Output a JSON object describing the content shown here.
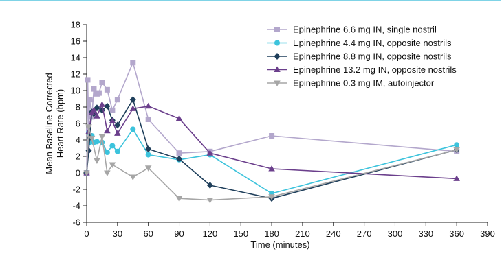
{
  "chart_data": {
    "type": "line",
    "title": "",
    "xlabel": "Time (minutes)",
    "ylabel_lines": [
      "Mean Baseline-Corrected",
      "Heart Rate (bpm)"
    ],
    "xlim": [
      0,
      390
    ],
    "ylim": [
      -6,
      18
    ],
    "xticks": [
      0,
      30,
      60,
      90,
      120,
      150,
      180,
      210,
      240,
      270,
      300,
      330,
      360,
      390
    ],
    "yticks": [
      -6,
      -4,
      -2,
      0,
      2,
      4,
      6,
      8,
      10,
      12,
      14,
      16,
      18
    ],
    "grid": false,
    "legend_position": "top-right",
    "series": [
      {
        "name": "Epinephrine 6.6 mg IN, single nostril",
        "color": "#b3a7cc",
        "marker": "square",
        "x": [
          0,
          1,
          2,
          3,
          5,
          7,
          10,
          12,
          15,
          20,
          25,
          30,
          45,
          60,
          90,
          120,
          180,
          360
        ],
        "y": [
          0,
          11.3,
          5.2,
          8.9,
          6.8,
          10.2,
          9.6,
          9.7,
          11.0,
          10.1,
          7.6,
          8.9,
          13.4,
          6.5,
          2.4,
          2.6,
          4.5,
          2.6
        ]
      },
      {
        "name": "Epinephrine 4.4 mg IN, opposite nostrils",
        "color": "#3cc3dc",
        "marker": "circle",
        "x": [
          0,
          2,
          3,
          5,
          7,
          10,
          15,
          20,
          25,
          30,
          45,
          60,
          90,
          120,
          180,
          360
        ],
        "y": [
          0,
          4.9,
          3.7,
          4.5,
          3.7,
          3.8,
          3.7,
          2.5,
          3.3,
          2.6,
          5.3,
          2.2,
          1.6,
          2.2,
          -2.5,
          3.4
        ]
      },
      {
        "name": "Epinephrine 8.8 mg IN, opposite nostrils",
        "color": "#1f3f5b",
        "marker": "diamond",
        "x": [
          0,
          2,
          3,
          5,
          7,
          10,
          15,
          20,
          25,
          30,
          45,
          60,
          90,
          120,
          180,
          360
        ],
        "y": [
          0,
          2.7,
          4.3,
          7.4,
          7.2,
          7.9,
          7.6,
          8.1,
          6.4,
          5.8,
          8.9,
          2.9,
          1.7,
          -1.5,
          -3.1,
          2.8
        ]
      },
      {
        "name": "Epinephrine 13.2 mg IN, opposite nostrils",
        "color": "#6b3f8c",
        "marker": "triangle-up",
        "x": [
          0,
          2,
          5,
          7,
          10,
          15,
          20,
          25,
          30,
          45,
          60,
          90,
          120,
          180,
          360
        ],
        "y": [
          0,
          5.0,
          7.3,
          7.6,
          6.9,
          8.3,
          5.1,
          6.3,
          4.8,
          7.8,
          8.1,
          6.6,
          2.4,
          0.5,
          -0.7
        ]
      },
      {
        "name": "Epinephrine 0.3 mg IM, autoinjector",
        "color": "#a6a6a6",
        "marker": "triangle-down",
        "x": [
          0,
          2,
          5,
          10,
          15,
          20,
          25,
          45,
          60,
          90,
          120,
          180,
          360
        ],
        "y": [
          0,
          5.6,
          4.2,
          1.5,
          4.4,
          0.0,
          1.0,
          -0.5,
          0.6,
          -3.1,
          -3.3,
          -2.9,
          2.8
        ]
      }
    ]
  }
}
